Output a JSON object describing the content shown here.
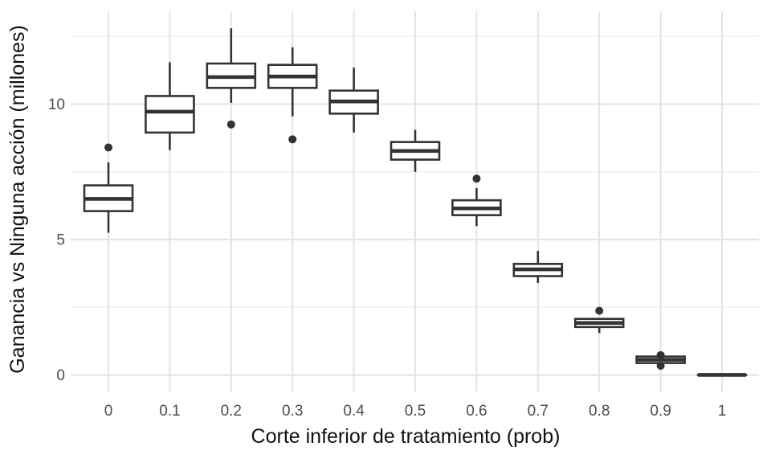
{
  "chart_data": {
    "type": "boxplot",
    "title": "",
    "xlabel": "Corte inferior de tratamiento (prob)",
    "ylabel": "Ganancia vs Ninguna acción (millones)",
    "x_tick_labels": [
      "0",
      "0.1",
      "0.2",
      "0.3",
      "0.4",
      "0.5",
      "0.6",
      "0.7",
      "0.8",
      "0.9",
      "1"
    ],
    "y_tick_labels": [
      "0",
      "5",
      "10"
    ],
    "y_major_ticks": [
      0,
      5,
      10
    ],
    "y_minor_ticks": [
      2.5,
      7.5,
      12.5
    ],
    "ylim": [
      -0.64,
      13.43
    ],
    "grid": "on",
    "legend": "none",
    "boxes": [
      {
        "x": "0",
        "whisker_low": 5.25,
        "q1": 6.05,
        "median": 6.5,
        "q3": 7.0,
        "whisker_high": 7.85,
        "outliers": [
          8.4
        ]
      },
      {
        "x": "0.1",
        "whisker_low": 8.3,
        "q1": 8.95,
        "median": 9.72,
        "q3": 10.3,
        "whisker_high": 11.55,
        "outliers": []
      },
      {
        "x": "0.2",
        "whisker_low": 10.05,
        "q1": 10.6,
        "median": 11.0,
        "q3": 11.5,
        "whisker_high": 12.8,
        "outliers": [
          9.25
        ]
      },
      {
        "x": "0.3",
        "whisker_low": 9.55,
        "q1": 10.6,
        "median": 11.02,
        "q3": 11.45,
        "whisker_high": 12.1,
        "outliers": [
          8.7
        ]
      },
      {
        "x": "0.4",
        "whisker_low": 8.95,
        "q1": 9.65,
        "median": 10.1,
        "q3": 10.5,
        "whisker_high": 11.35,
        "outliers": []
      },
      {
        "x": "0.5",
        "whisker_low": 7.5,
        "q1": 7.95,
        "median": 8.27,
        "q3": 8.6,
        "whisker_high": 9.05,
        "outliers": []
      },
      {
        "x": "0.6",
        "whisker_low": 5.5,
        "q1": 5.9,
        "median": 6.15,
        "q3": 6.45,
        "whisker_high": 6.9,
        "outliers": [
          7.25
        ]
      },
      {
        "x": "0.7",
        "whisker_low": 3.4,
        "q1": 3.65,
        "median": 3.9,
        "q3": 4.1,
        "whisker_high": 4.58,
        "outliers": []
      },
      {
        "x": "0.8",
        "whisker_low": 1.55,
        "q1": 1.77,
        "median": 1.92,
        "q3": 2.07,
        "whisker_high": 2.1,
        "outliers": [
          2.37
        ]
      },
      {
        "x": "0.9",
        "whisker_low": 0.3,
        "q1": 0.44,
        "median": 0.56,
        "q3": 0.68,
        "whisker_high": 0.72,
        "outliers": [
          0.73,
          0.34
        ]
      },
      {
        "x": "1",
        "whisker_low": 0.0,
        "q1": 0.0,
        "median": 0.0,
        "q3": 0.0,
        "whisker_high": 0.0,
        "outliers": []
      }
    ],
    "colors": {
      "background": "#ffffff",
      "box_stroke": "#333333",
      "box_fill": "#ffffff",
      "outlier": "#333333",
      "grid_major": "#e3e3e3",
      "grid_minor": "#f0f0f0",
      "axis_text": "#4d4d4d",
      "axis_title": "#111111"
    }
  }
}
